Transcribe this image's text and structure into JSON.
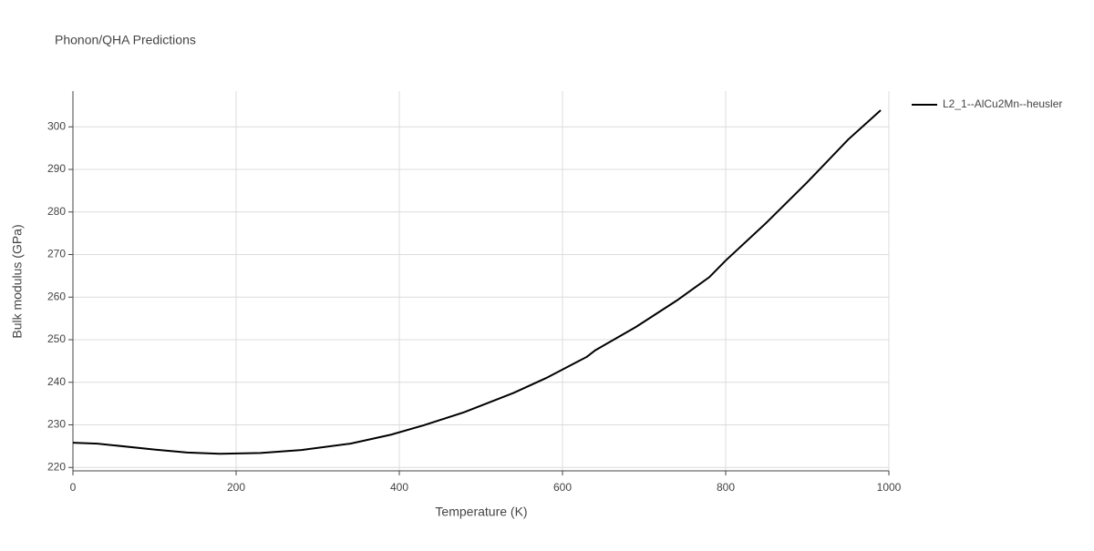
{
  "chart_data": {
    "type": "line",
    "title": "Phonon/QHA Predictions",
    "x_label": "Temperature (K)",
    "y_label": "Bulk modulus (GPa)",
    "x": [
      0,
      30,
      50,
      100,
      140,
      180,
      230,
      280,
      340,
      390,
      430,
      480,
      540,
      580,
      620,
      630,
      640,
      690,
      740,
      780,
      800,
      850,
      900,
      950,
      990
    ],
    "series": [
      {
        "name": "L2_1--AlCu2Mn--heusler",
        "color": "#000000",
        "values": [
          225.8,
          225.6,
          225.2,
          224.2,
          223.5,
          223.2,
          223.4,
          224.1,
          225.6,
          227.7,
          229.9,
          233.0,
          237.5,
          241.0,
          245.0,
          246.0,
          247.5,
          253.0,
          259.2,
          264.7,
          268.6,
          277.5,
          287.0,
          297.0,
          303.9
        ]
      }
    ],
    "xlim": [
      0,
      1000
    ],
    "xticks": [
      0,
      200,
      400,
      600,
      800,
      1000
    ],
    "ylim": [
      219.2,
      308.4
    ],
    "yticks": [
      220,
      230,
      240,
      250,
      260,
      270,
      280,
      290,
      300
    ],
    "grid": true,
    "legend": "right"
  }
}
